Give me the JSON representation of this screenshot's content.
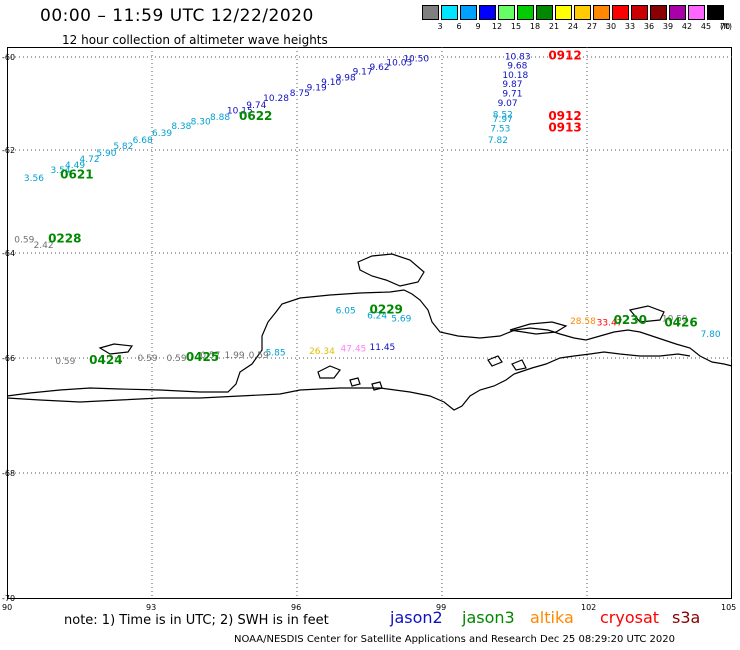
{
  "header": {
    "title": "00:00 – 11:59 UTC 12/22/2020",
    "subtitle": "12 hour collection of altimeter wave heights"
  },
  "legend": {
    "unit": "(ft)",
    "bins": [
      {
        "label": "3",
        "color": "#7f7f7f"
      },
      {
        "label": "6",
        "color": "#00e5ff"
      },
      {
        "label": "9",
        "color": "#00a0ff"
      },
      {
        "label": "12",
        "color": "#0000ff"
      },
      {
        "label": "15",
        "color": "#66ff66"
      },
      {
        "label": "18",
        "color": "#00cc00"
      },
      {
        "label": "21",
        "color": "#008800"
      },
      {
        "label": "24",
        "color": "#ffff00"
      },
      {
        "label": "27",
        "color": "#ffcc00"
      },
      {
        "label": "30",
        "color": "#ff8800"
      },
      {
        "label": "33",
        "color": "#ff0000"
      },
      {
        "label": "36",
        "color": "#cc0000"
      },
      {
        "label": "39",
        "color": "#880000"
      },
      {
        "label": "42",
        "color": "#aa00aa"
      },
      {
        "label": "45",
        "color": "#ff66ff"
      },
      {
        "label": "70",
        "color": "#000000"
      }
    ]
  },
  "map": {
    "lon_range": [
      90,
      105
    ],
    "lat_range": [
      -70,
      -60
    ],
    "lon_ticks": [
      "90",
      "93",
      "96",
      "99",
      "102",
      "105"
    ],
    "lat_ticks": [
      "-60",
      "-62",
      "-64",
      "-66",
      "-68",
      "-70"
    ],
    "grid": "dotted"
  },
  "observations": [
    {
      "text": "10.50",
      "color": "#1010c0",
      "lon": 98.2,
      "lat": -60.1
    },
    {
      "text": "10.03",
      "color": "#1010c0",
      "lon": 97.85,
      "lat": -60.18
    },
    {
      "text": "9.62",
      "color": "#1010c0",
      "lon": 97.5,
      "lat": -60.28
    },
    {
      "text": "9.17",
      "color": "#1010c0",
      "lon": 97.15,
      "lat": -60.38
    },
    {
      "text": "9.98",
      "color": "#1010c0",
      "lon": 96.8,
      "lat": -60.5
    },
    {
      "text": "9.10",
      "color": "#1010c0",
      "lon": 96.5,
      "lat": -60.6
    },
    {
      "text": "9.19",
      "color": "#1010c0",
      "lon": 96.2,
      "lat": -60.72
    },
    {
      "text": "8.75",
      "color": "#1010c0",
      "lon": 95.85,
      "lat": -60.84
    },
    {
      "text": "10.28",
      "color": "#1010c0",
      "lon": 95.3,
      "lat": -60.95
    },
    {
      "text": "9.74",
      "color": "#1010c0",
      "lon": 94.95,
      "lat": -61.1
    },
    {
      "text": "10.15",
      "color": "#1010c0",
      "lon": 94.55,
      "lat": -61.22
    },
    {
      "text": "8.88",
      "color": "#00a0d0",
      "lon": 94.2,
      "lat": -61.35
    },
    {
      "text": "8.30",
      "color": "#00a0d0",
      "lon": 93.8,
      "lat": -61.45
    },
    {
      "text": "8.38",
      "color": "#00a0d0",
      "lon": 93.4,
      "lat": -61.55
    },
    {
      "text": "6.39",
      "color": "#00a0d0",
      "lon": 93.0,
      "lat": -61.7
    },
    {
      "text": "6.68",
      "color": "#00a0d0",
      "lon": 92.6,
      "lat": -61.85
    },
    {
      "text": "5.82",
      "color": "#00a0d0",
      "lon": 92.2,
      "lat": -61.98
    },
    {
      "text": "5.90",
      "color": "#00a0d0",
      "lon": 91.85,
      "lat": -62.12
    },
    {
      "text": "4.72",
      "color": "#00a0d0",
      "lon": 91.5,
      "lat": -62.23
    },
    {
      "text": "4.49",
      "color": "#00a0d0",
      "lon": 91.2,
      "lat": -62.35
    },
    {
      "text": "3.54",
      "color": "#00a0d0",
      "lon": 90.9,
      "lat": -62.45
    },
    {
      "text": "3.56",
      "color": "#00a0d0",
      "lon": 90.35,
      "lat": -62.6
    },
    {
      "text": "0.59",
      "color": "#707070",
      "lon": 90.15,
      "lat": -63.8
    },
    {
      "text": "2.42",
      "color": "#707070",
      "lon": 90.55,
      "lat": -63.9
    },
    {
      "text": "10.83",
      "color": "#1010c0",
      "lon": 100.3,
      "lat": -60.05
    },
    {
      "text": "9.68",
      "color": "#1010c0",
      "lon": 100.35,
      "lat": -60.25
    },
    {
      "text": "10.18",
      "color": "#1010c0",
      "lon": 100.25,
      "lat": -60.45
    },
    {
      "text": "9.87",
      "color": "#1010c0",
      "lon": 100.25,
      "lat": -60.65
    },
    {
      "text": "9.71",
      "color": "#1010c0",
      "lon": 100.25,
      "lat": -60.85
    },
    {
      "text": "9.07",
      "color": "#1010c0",
      "lon": 100.15,
      "lat": -61.05
    },
    {
      "text": "8.52",
      "color": "#00a0d0",
      "lon": 100.05,
      "lat": -61.3
    },
    {
      "text": "7.97",
      "color": "#00a0d0",
      "lon": 100.05,
      "lat": -61.4
    },
    {
      "text": "7.53",
      "color": "#00a0d0",
      "lon": 100.0,
      "lat": -61.6
    },
    {
      "text": "7.82",
      "color": "#00a0d0",
      "lon": 99.95,
      "lat": -61.85
    },
    {
      "text": "6.05",
      "color": "#00a0d0",
      "lon": 96.8,
      "lat": -65.15
    },
    {
      "text": "6.24",
      "color": "#00a0d0",
      "lon": 97.45,
      "lat": -65.25
    },
    {
      "text": "5.69",
      "color": "#00a0d0",
      "lon": 97.95,
      "lat": -65.3
    },
    {
      "text": "26.34",
      "color": "#e0c000",
      "lon": 96.25,
      "lat": -65.92
    },
    {
      "text": "47.45",
      "color": "#ff80ff",
      "lon": 96.9,
      "lat": -65.88
    },
    {
      "text": "11.45",
      "color": "#1010c0",
      "lon": 97.5,
      "lat": -65.85
    },
    {
      "text": "0.59",
      "color": "#707070",
      "lon": 91.0,
      "lat": -66.1
    },
    {
      "text": "0.59",
      "color": "#707070",
      "lon": 92.7,
      "lat": -66.05
    },
    {
      "text": "0.59",
      "color": "#707070",
      "lon": 93.3,
      "lat": -66.05
    },
    {
      "text": "0.57",
      "color": "#707070",
      "lon": 94.0,
      "lat": -66.0
    },
    {
      "text": "1.99",
      "color": "#707070",
      "lon": 94.5,
      "lat": -66.0
    },
    {
      "text": "0.59",
      "color": "#707070",
      "lon": 95.0,
      "lat": -66.0
    },
    {
      "text": "5.85",
      "color": "#00a0d0",
      "lon": 95.35,
      "lat": -65.95
    },
    {
      "text": "28.58",
      "color": "#ff8800",
      "lon": 101.65,
      "lat": -65.35
    },
    {
      "text": "33.47",
      "color": "#ff0000",
      "lon": 102.2,
      "lat": -65.38
    },
    {
      "text": "10.59",
      "color": "#707070",
      "lon": 103.55,
      "lat": -65.3
    },
    {
      "text": "7.80",
      "color": "#00a0d0",
      "lon": 104.35,
      "lat": -65.6
    }
  ],
  "time_labels": [
    {
      "text": "0622",
      "color": "#008800",
      "lon": 94.8,
      "lat": -61.35
    },
    {
      "text": "0621",
      "color": "#008800",
      "lon": 91.1,
      "lat": -62.55
    },
    {
      "text": "0228",
      "color": "#008800",
      "lon": 90.85,
      "lat": -63.8
    },
    {
      "text": "0229",
      "color": "#008800",
      "lon": 97.5,
      "lat": -65.15
    },
    {
      "text": "0424",
      "color": "#008800",
      "lon": 91.7,
      "lat": -66.1
    },
    {
      "text": "0425",
      "color": "#008800",
      "lon": 93.7,
      "lat": -66.05
    },
    {
      "text": "0230",
      "color": "#008800",
      "lon": 102.55,
      "lat": -65.35
    },
    {
      "text": "0426",
      "color": "#008800",
      "lon": 103.6,
      "lat": -65.4
    },
    {
      "text": "0912",
      "color": "#ff0000",
      "lon": 101.2,
      "lat": -60.05
    },
    {
      "text": "0912",
      "color": "#ff0000",
      "lon": 101.2,
      "lat": -61.35
    },
    {
      "text": "0913",
      "color": "#ff0000",
      "lon": 101.2,
      "lat": -61.6
    }
  ],
  "footer": {
    "note": "note: 1) Time is in UTC; 2) SWH is in feet",
    "satellites": [
      {
        "name": "jason2",
        "color": "#1010c0"
      },
      {
        "name": "jason3",
        "color": "#008800"
      },
      {
        "name": "altika",
        "color": "#ff8800"
      },
      {
        "name": "cryosat",
        "color": "#ff0000"
      },
      {
        "name": "s3a",
        "color": "#880000"
      }
    ],
    "credit": "NOAA/NESDIS Center for Satellite Applications and Research    Dec 25 08:29:20 UTC 2020"
  }
}
